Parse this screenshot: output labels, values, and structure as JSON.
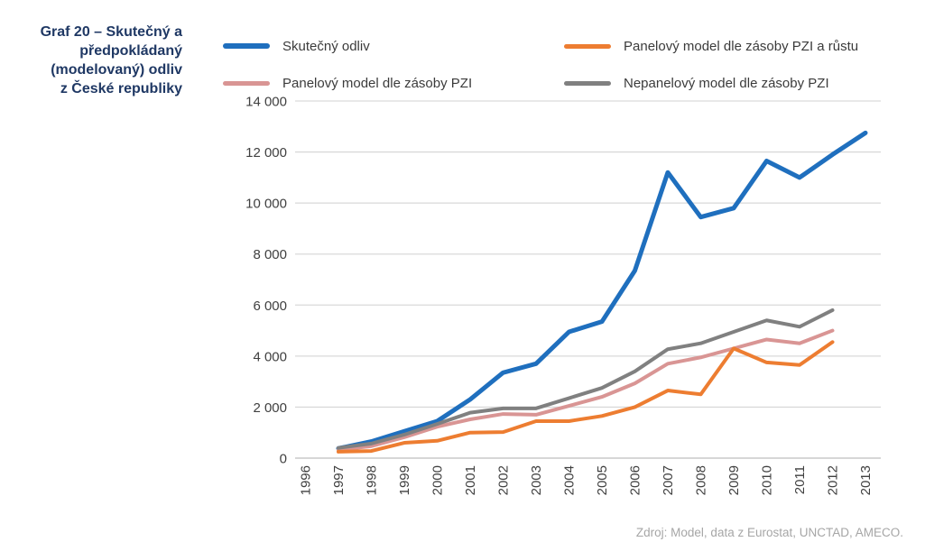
{
  "title": {
    "lines": [
      "Graf 20 – Skutečný a",
      "předpokládaný",
      "(modelovaný) odliv",
      "z České republiky"
    ]
  },
  "legend": {
    "items": [
      {
        "label": "Skutečný odliv",
        "color": "#1F6FBE"
      },
      {
        "label": "Panelový model dle zásoby PZI a růstu",
        "color": "#ED7D31"
      },
      {
        "label": "Panelový model dle zásoby PZI",
        "color": "#D99594"
      },
      {
        "label": "Nepanelový model dle zásoby PZI",
        "color": "#808080"
      }
    ]
  },
  "source": "Zdroj: Model, data z Eurostat, UNCTAD, AMECO.",
  "colors": {
    "title": "#1F3864",
    "axis_text": "#404040",
    "gridline": "#D9D9D9",
    "axis_line": "#BFBFBF",
    "source_text": "#A6A6A6"
  },
  "chart_data": {
    "type": "line",
    "title": "Graf 20 – Skutečný a předpokládaný (modelovaný) odliv z České republiky",
    "xlabel": "",
    "ylabel": "",
    "xlim": [
      1996,
      2013
    ],
    "ylim": [
      0,
      14000
    ],
    "ytick_step": 2000,
    "ytick_labels": [
      "0",
      "2 000",
      "4 000",
      "6 000",
      "8 000",
      "10 000",
      "12 000",
      "14 000"
    ],
    "x_axis_labels": [
      "1996",
      "1997",
      "1998",
      "1999",
      "2000",
      "2001",
      "2002",
      "2003",
      "2004",
      "2005",
      "2006",
      "2007",
      "2008",
      "2009",
      "2010",
      "2011",
      "2012",
      "2013"
    ],
    "grid": "horizontal",
    "legend_position": "top",
    "series": [
      {
        "name": "Skutečný odliv",
        "id": "skutecny-odliv",
        "color": "#1F6FBE",
        "stroke_width": 5,
        "years": [
          1997,
          1998,
          1999,
          2000,
          2001,
          2002,
          2003,
          2004,
          2005,
          2006,
          2007,
          2008,
          2009,
          2010,
          2011,
          2012,
          2013
        ],
        "values": [
          380,
          650,
          1050,
          1450,
          2300,
          3350,
          3700,
          4950,
          5350,
          7350,
          11200,
          9450,
          9800,
          11650,
          11000,
          11900,
          12750
        ]
      },
      {
        "name": "Panelový model dle zásoby PZI a růstu",
        "id": "panelovy-model-pzi-a-rustu",
        "color": "#ED7D31",
        "stroke_width": 4,
        "years": [
          1997,
          1998,
          1999,
          2000,
          2001,
          2002,
          2003,
          2004,
          2005,
          2006,
          2007,
          2008,
          2009,
          2010,
          2011,
          2012
        ],
        "values": [
          250,
          280,
          600,
          680,
          1000,
          1020,
          1450,
          1450,
          1650,
          2000,
          2650,
          2500,
          4300,
          3750,
          3650,
          4550
        ]
      },
      {
        "name": "Panelový model dle zásoby PZI",
        "id": "panelovy-model-pzi",
        "color": "#D99594",
        "stroke_width": 4,
        "years": [
          1997,
          1998,
          1999,
          2000,
          2001,
          2002,
          2003,
          2004,
          2005,
          2006,
          2007,
          2008,
          2009,
          2010,
          2011,
          2012
        ],
        "values": [
          320,
          470,
          820,
          1230,
          1520,
          1730,
          1700,
          2050,
          2400,
          2930,
          3700,
          3950,
          4300,
          4650,
          4500,
          5000
        ]
      },
      {
        "name": "Nepanelový model dle zásoby PZI",
        "id": "nepanelovy-model-pzi",
        "color": "#808080",
        "stroke_width": 4,
        "years": [
          1997,
          1998,
          1999,
          2000,
          2001,
          2002,
          2003,
          2004,
          2005,
          2006,
          2007,
          2008,
          2009,
          2010,
          2011,
          2012
        ],
        "values": [
          400,
          570,
          920,
          1340,
          1780,
          1950,
          1950,
          2350,
          2750,
          3400,
          4270,
          4500,
          4950,
          5400,
          5150,
          5800
        ]
      }
    ]
  }
}
